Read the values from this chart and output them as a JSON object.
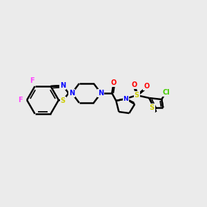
{
  "bg_color": "#ebebeb",
  "bond_color": "#000000",
  "bond_width": 1.5,
  "atom_colors": {
    "N": "#0000ff",
    "S": "#cccc00",
    "O": "#ff0000",
    "F": "#ff44ff",
    "Cl": "#44cc00",
    "C": "#000000"
  },
  "font_size": 7,
  "fig_size": [
    3.0,
    3.0
  ],
  "dpi": 100
}
